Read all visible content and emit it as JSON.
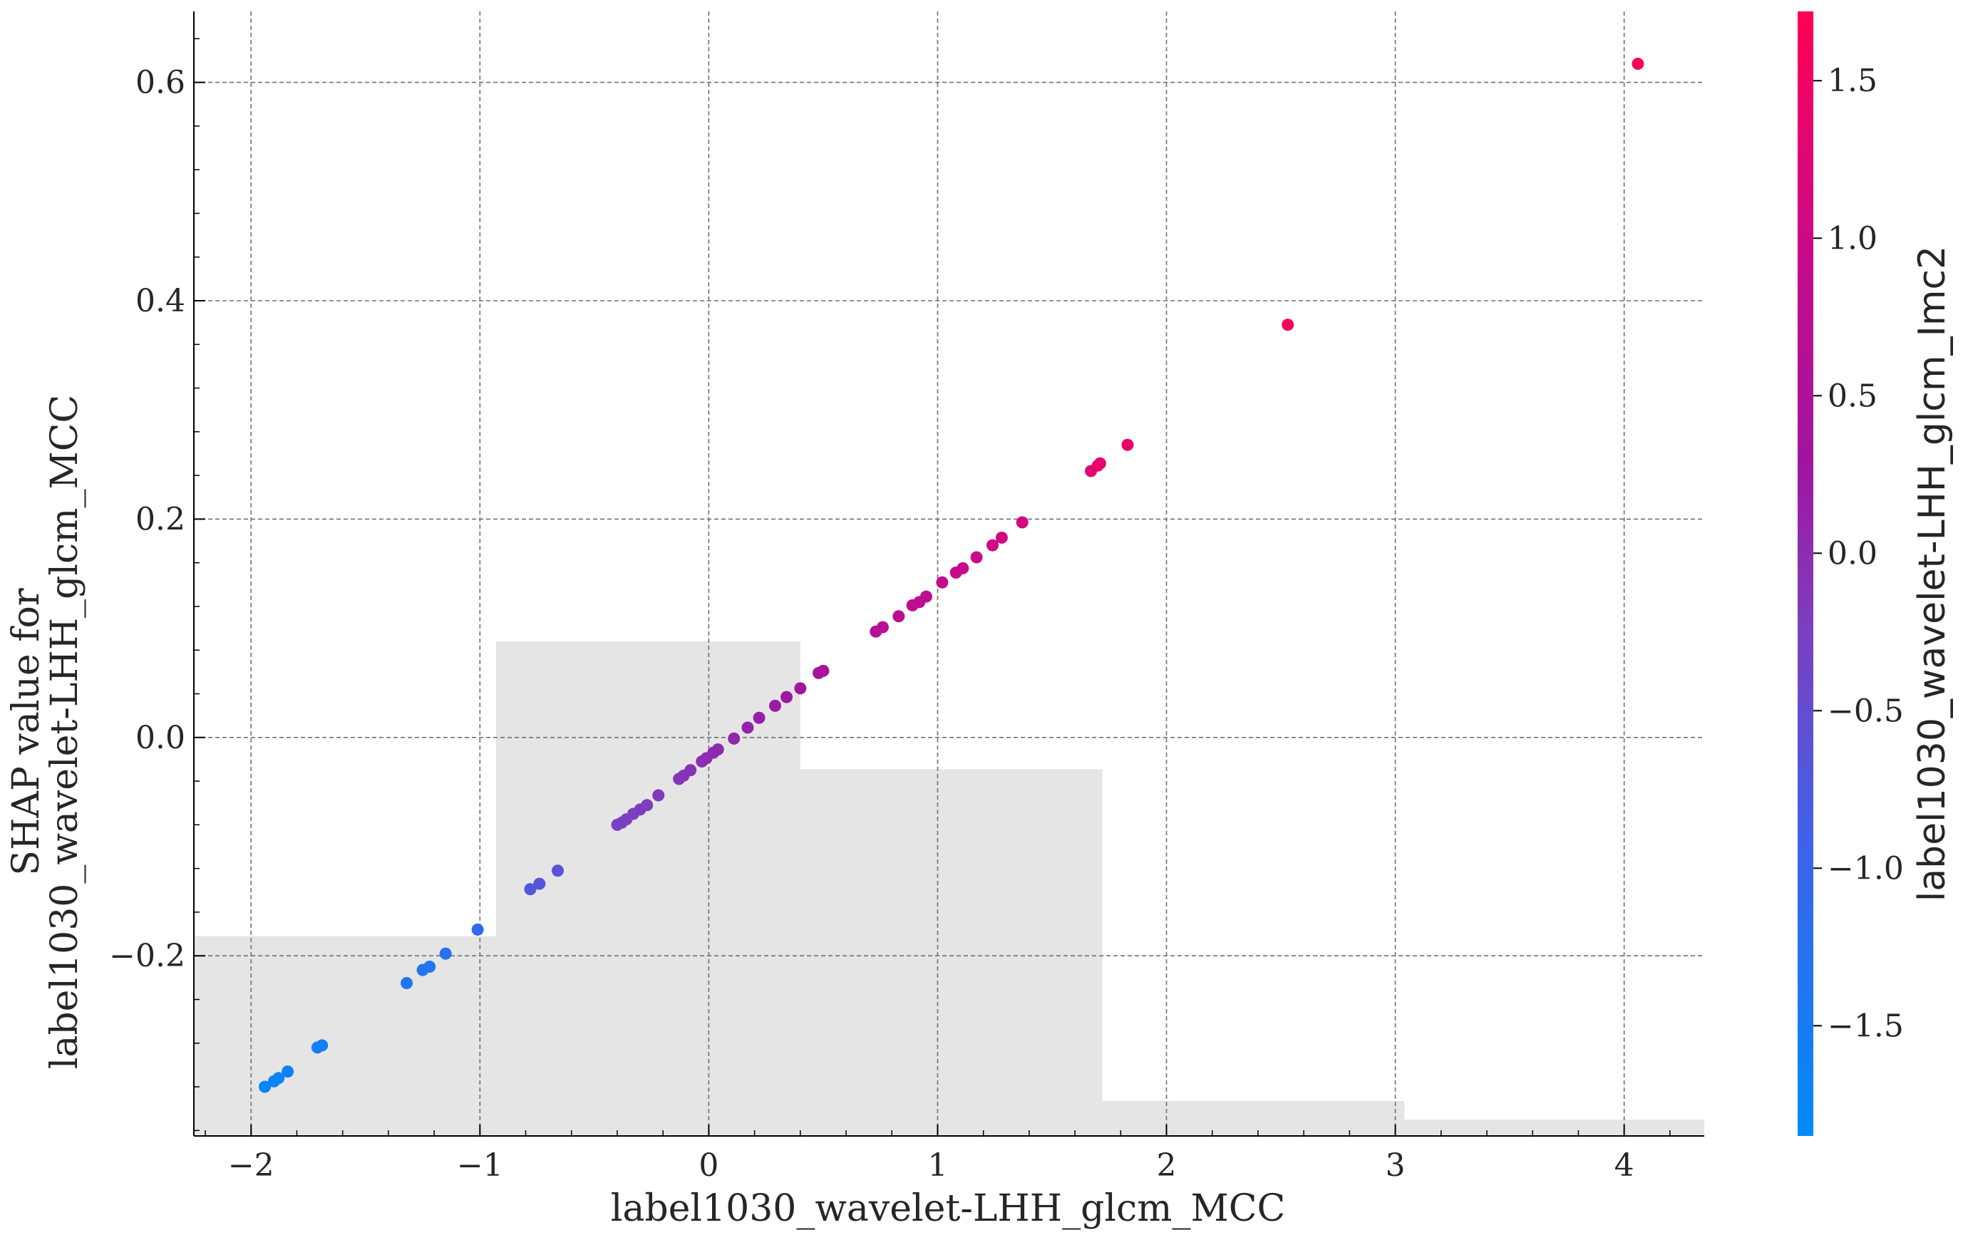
{
  "chart_data": {
    "type": "scatter",
    "title": "",
    "xlabel": "label1030_wavelet-LHH_glcm_MCC",
    "ylabel": [
      "SHAP value for",
      "label1030_wavelet-LHH_glcm_MCC"
    ],
    "xlim": [
      -2.25,
      4.35
    ],
    "ylim": [
      -0.365,
      0.665
    ],
    "grid": true,
    "x_ticks": [
      -2,
      -1,
      0,
      1,
      2,
      3,
      4
    ],
    "x_tick_labels": [
      "−2",
      "−1",
      "0",
      "1",
      "2",
      "3",
      "4"
    ],
    "y_ticks": [
      -0.2,
      0.0,
      0.2,
      0.4,
      0.6
    ],
    "y_tick_labels": [
      "−0.2",
      "0.0",
      "0.2",
      "0.4",
      "0.6"
    ],
    "histogram": {
      "color": "#e5e5e5",
      "bins": [
        {
          "x0": -2.25,
          "x1": -0.93,
          "y": -0.182
        },
        {
          "x0": -0.93,
          "x1": 0.4,
          "y": 0.088
        },
        {
          "x0": 0.4,
          "x1": 1.72,
          "y": -0.029
        },
        {
          "x0": 1.72,
          "x1": 3.04,
          "y": -0.333
        },
        {
          "x0": 3.04,
          "x1": 4.35,
          "y": -0.35
        }
      ]
    },
    "colorbar": {
      "label": "label1030_wavelet-LHH_glcm_Imc2",
      "range": [
        -1.85,
        1.72
      ],
      "ticks": [
        -1.5,
        -1.0,
        -0.5,
        0.0,
        0.5,
        1.0,
        1.5
      ],
      "tick_labels": [
        "−1.5",
        "−1.0",
        "−0.5",
        "0.0",
        "0.5",
        "1.0",
        "1.5"
      ],
      "colors": [
        "#008bfb",
        "#3a64eb",
        "#7c3fc0",
        "#a0159f",
        "#c80b8c",
        "#ff0052"
      ]
    },
    "points": [
      {
        "x": -1.94,
        "y": -0.32,
        "c": -1.72
      },
      {
        "x": -1.9,
        "y": -0.315,
        "c": -1.7
      },
      {
        "x": -1.88,
        "y": -0.312,
        "c": -1.68
      },
      {
        "x": -1.84,
        "y": -0.306,
        "c": -1.62
      },
      {
        "x": -1.71,
        "y": -0.284,
        "c": -1.58
      },
      {
        "x": -1.69,
        "y": -0.282,
        "c": -1.57
      },
      {
        "x": -1.32,
        "y": -0.225,
        "c": -1.4
      },
      {
        "x": -1.25,
        "y": -0.213,
        "c": -1.35
      },
      {
        "x": -1.22,
        "y": -0.21,
        "c": -1.32
      },
      {
        "x": -1.15,
        "y": -0.198,
        "c": -1.25
      },
      {
        "x": -1.01,
        "y": -0.176,
        "c": -1.1
      },
      {
        "x": -0.78,
        "y": -0.139,
        "c": -0.7
      },
      {
        "x": -0.74,
        "y": -0.134,
        "c": -0.68
      },
      {
        "x": -0.66,
        "y": -0.122,
        "c": -0.62
      },
      {
        "x": -0.4,
        "y": -0.08,
        "c": -0.3
      },
      {
        "x": -0.38,
        "y": -0.078,
        "c": -0.28
      },
      {
        "x": -0.36,
        "y": -0.075,
        "c": -0.26
      },
      {
        "x": -0.33,
        "y": -0.07,
        "c": -0.24
      },
      {
        "x": -0.3,
        "y": -0.066,
        "c": -0.22
      },
      {
        "x": -0.27,
        "y": -0.062,
        "c": -0.2
      },
      {
        "x": -0.22,
        "y": -0.053,
        "c": -0.17
      },
      {
        "x": -0.13,
        "y": -0.038,
        "c": -0.12
      },
      {
        "x": -0.11,
        "y": -0.035,
        "c": -0.1
      },
      {
        "x": -0.08,
        "y": -0.03,
        "c": -0.07
      },
      {
        "x": -0.03,
        "y": -0.022,
        "c": -0.04
      },
      {
        "x": -0.01,
        "y": -0.019,
        "c": -0.01
      },
      {
        "x": 0.02,
        "y": -0.014,
        "c": 0.02
      },
      {
        "x": 0.04,
        "y": -0.011,
        "c": 0.03
      },
      {
        "x": 0.11,
        "y": -0.001,
        "c": 0.08
      },
      {
        "x": 0.17,
        "y": 0.009,
        "c": 0.12
      },
      {
        "x": 0.22,
        "y": 0.018,
        "c": 0.16
      },
      {
        "x": 0.29,
        "y": 0.029,
        "c": 0.22
      },
      {
        "x": 0.34,
        "y": 0.037,
        "c": 0.26
      },
      {
        "x": 0.4,
        "y": 0.045,
        "c": 0.32
      },
      {
        "x": 0.48,
        "y": 0.059,
        "c": 0.42
      },
      {
        "x": 0.5,
        "y": 0.061,
        "c": 0.44
      },
      {
        "x": 0.73,
        "y": 0.097,
        "c": 0.66
      },
      {
        "x": 0.76,
        "y": 0.101,
        "c": 0.68
      },
      {
        "x": 0.83,
        "y": 0.111,
        "c": 0.72
      },
      {
        "x": 0.89,
        "y": 0.121,
        "c": 0.76
      },
      {
        "x": 0.92,
        "y": 0.124,
        "c": 0.78
      },
      {
        "x": 0.95,
        "y": 0.129,
        "c": 0.8
      },
      {
        "x": 1.02,
        "y": 0.142,
        "c": 0.86
      },
      {
        "x": 1.08,
        "y": 0.151,
        "c": 0.9
      },
      {
        "x": 1.11,
        "y": 0.155,
        "c": 0.92
      },
      {
        "x": 1.17,
        "y": 0.165,
        "c": 0.97
      },
      {
        "x": 1.24,
        "y": 0.176,
        "c": 1.02
      },
      {
        "x": 1.28,
        "y": 0.183,
        "c": 1.05
      },
      {
        "x": 1.37,
        "y": 0.197,
        "c": 1.12
      },
      {
        "x": 1.67,
        "y": 0.244,
        "c": 1.32
      },
      {
        "x": 1.7,
        "y": 0.249,
        "c": 1.34
      },
      {
        "x": 1.71,
        "y": 0.251,
        "c": 1.35
      },
      {
        "x": 1.83,
        "y": 0.268,
        "c": 1.42
      },
      {
        "x": 2.53,
        "y": 0.378,
        "c": 1.58
      },
      {
        "x": 4.06,
        "y": 0.617,
        "c": 1.68
      }
    ]
  }
}
